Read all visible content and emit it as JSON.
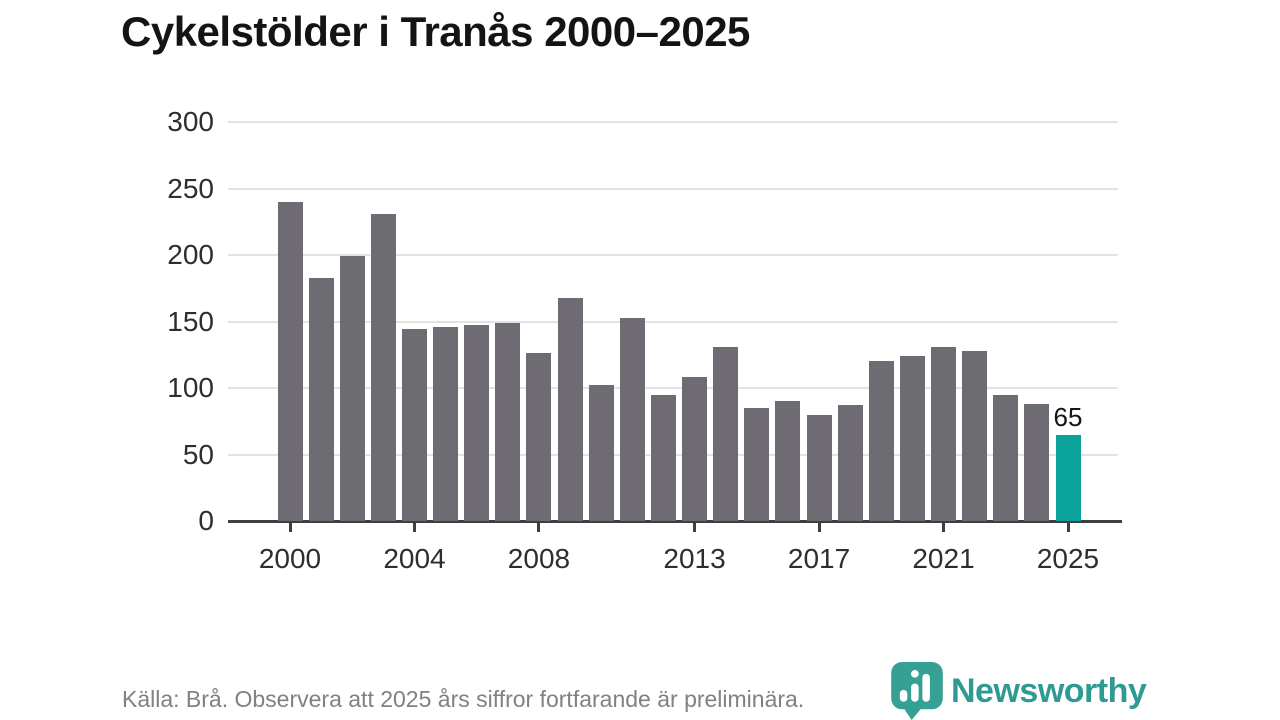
{
  "title": "Cykelstölder i Tranås 2000–2025",
  "chart_data": {
    "type": "bar",
    "title": "Cykelstölder i Tranås 2000–2025",
    "categories": [
      2000,
      2001,
      2002,
      2003,
      2004,
      2005,
      2006,
      2007,
      2008,
      2009,
      2010,
      2011,
      2012,
      2013,
      2014,
      2015,
      2016,
      2017,
      2018,
      2019,
      2020,
      2021,
      2022,
      2023,
      2024,
      2025
    ],
    "values": [
      240,
      183,
      199,
      231,
      144,
      146,
      147,
      149,
      126,
      168,
      102,
      153,
      95,
      108,
      131,
      85,
      90,
      80,
      87,
      120,
      124,
      131,
      128,
      95,
      88,
      65
    ],
    "xlabel": "",
    "ylabel": "",
    "ylim": [
      0,
      300
    ],
    "yticks": [
      0,
      50,
      100,
      150,
      200,
      250,
      300
    ],
    "xticks": [
      2000,
      2004,
      2008,
      2013,
      2017,
      2021,
      2025
    ],
    "grid": true,
    "legend": "none",
    "bar_color": "#6e6b72",
    "highlight_index": 25,
    "highlight_color": "#0aa29b",
    "highlight_label": "65"
  },
  "footer": {
    "source_note": "Källa: Brå. Observera att 2025 års siffror fortfarande är preliminära."
  },
  "logo": {
    "text": "Newsworthy",
    "color": "#2f9a93",
    "icon": "newsworthy-pin-chart-icon"
  }
}
